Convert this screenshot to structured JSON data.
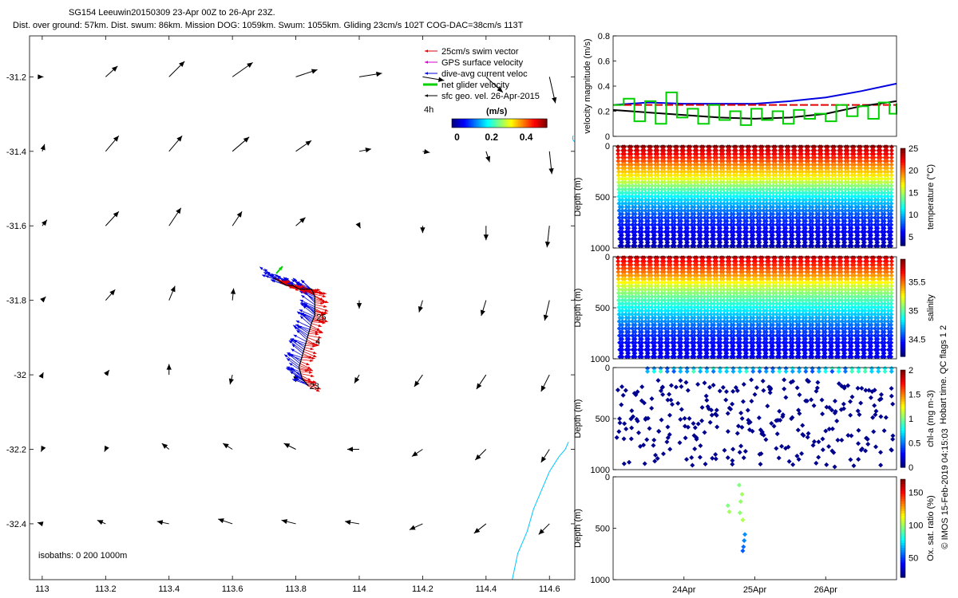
{
  "header": {
    "line1": "SG154 Leeuwin20150309 23-Apr 00Z to 26-Apr 23Z.",
    "line2": "Dist. over ground: 57km. Dist. swum: 86km. Mission DOG: 1059km. Swum: 1055km. Gliding 23cm/s 102T COG-DAC=38cm/s 113T"
  },
  "chart_data": [
    {
      "type": "map",
      "name": "glider-track-map",
      "xlim": [
        112.96,
        114.68
      ],
      "ylim": [
        -32.55,
        -31.09
      ],
      "xticks": [
        113,
        113.2,
        113.4,
        113.6,
        113.8,
        114,
        114.2,
        114.4,
        114.6
      ],
      "yticks": [
        -31.2,
        -31.4,
        -31.6,
        -31.8,
        -32,
        -32.2,
        -32.4
      ],
      "xtick_labels": [
        "113",
        "113.2",
        "113.4",
        "113.6",
        "113.8",
        "114",
        "114.2",
        "114.4",
        "114.6"
      ],
      "ytick_labels": [
        "-31.2",
        "-31.4",
        "-31.6",
        "-31.8",
        "-32",
        "-32.2",
        "-32.4"
      ],
      "legend": {
        "items": [
          {
            "label": "25cm/s swim vector",
            "color": "#e00000"
          },
          {
            "label": "GPS surface velocity",
            "color": "#d000d0"
          },
          {
            "label": "dive-avg current veloc",
            "color": "#0000e0"
          },
          {
            "label": "net glider velocity",
            "color": "#00d000"
          },
          {
            "label": "sfc geo. vel. 26-Apr-2015",
            "color": "#000000"
          }
        ],
        "placement": "top-right",
        "scale_label": "4h",
        "colorbar_title": "(m/s)",
        "colorbar_ticks": [
          "0",
          "0.2",
          "0.4"
        ],
        "colorbar_range": [
          -0.03,
          0.52
        ]
      },
      "isobaths_label": "isobaths: 0   200  1000m",
      "day_labels": [
        {
          "text": "23",
          "lon": 113.843,
          "lat": -32.03
        },
        {
          "text": "4",
          "lon": 113.862,
          "lat": -31.91
        },
        {
          "text": "25",
          "lon": 113.865,
          "lat": -31.845
        }
      ],
      "geo_grid": {
        "lons": [
          113.0,
          113.2,
          113.4,
          113.6,
          113.8,
          114.0,
          114.2,
          114.4,
          114.6
        ],
        "lats": [
          -31.2,
          -31.4,
          -31.6,
          -31.8,
          -32.0,
          -32.2,
          -32.4
        ],
        "u": [
          [
            0.01,
            0.1,
            0.13,
            0.17,
            0.18,
            0.19,
            0.18,
            0.14,
            0.05
          ],
          [
            0.02,
            0.11,
            0.11,
            0.14,
            0.13,
            0.1,
            0.06,
            0.03,
            0.02
          ],
          [
            0.04,
            0.11,
            0.1,
            0.08,
            0.08,
            0.01,
            0.0,
            0.0,
            -0.02
          ],
          [
            0.03,
            0.08,
            0.05,
            0.01,
            0.0,
            0.0,
            -0.03,
            -0.04,
            -0.04
          ],
          [
            0.01,
            0.03,
            0.0,
            -0.02,
            0.0,
            -0.04,
            -0.07,
            -0.08,
            -0.07
          ],
          [
            -0.01,
            -0.01,
            -0.06,
            -0.08,
            -0.1,
            -0.1,
            -0.09,
            -0.09,
            -0.07
          ],
          [
            -0.04,
            -0.07,
            -0.1,
            -0.12,
            -0.12,
            -0.12,
            -0.11,
            -0.1,
            -0.09
          ]
        ],
        "v": [
          [
            0.0,
            0.09,
            0.13,
            0.12,
            0.06,
            0.03,
            -0.03,
            -0.13,
            -0.22
          ],
          [
            0.06,
            0.13,
            0.13,
            0.12,
            0.09,
            0.02,
            -0.01,
            -0.09,
            -0.19
          ],
          [
            0.05,
            0.12,
            0.15,
            0.12,
            0.07,
            -0.02,
            -0.06,
            -0.12,
            -0.18
          ],
          [
            0.03,
            0.09,
            0.12,
            0.1,
            0.0,
            -0.07,
            -0.1,
            -0.13,
            -0.17
          ],
          [
            0.02,
            0.04,
            0.09,
            -0.08,
            -0.06,
            -0.07,
            -0.1,
            -0.12,
            -0.14
          ],
          [
            -0.02,
            -0.02,
            0.05,
            0.05,
            0.05,
            0.0,
            -0.06,
            -0.09,
            -0.11
          ],
          [
            0.01,
            0.03,
            0.02,
            0.04,
            0.03,
            0.02,
            -0.05,
            -0.08,
            -0.09
          ]
        ]
      },
      "track": {
        "lon": [
          113.84,
          113.82,
          113.81,
          113.82,
          113.83,
          113.84,
          113.85,
          113.86,
          113.86,
          113.86,
          113.85,
          113.83,
          113.81,
          113.79,
          113.77,
          113.75,
          113.73
        ],
        "lat": [
          -32.03,
          -32.01,
          -31.98,
          -31.95,
          -31.92,
          -31.89,
          -31.86,
          -31.84,
          -31.82,
          -31.79,
          -31.77,
          -31.77,
          -31.77,
          -31.76,
          -31.76,
          -31.75,
          -31.74
        ],
        "dac_speed": 0.25,
        "swim_speed": 0.25
      },
      "coastline": {
        "lon": [
          114.66,
          114.65,
          114.63,
          114.6,
          114.58,
          114.55,
          114.53,
          114.5,
          114.49,
          114.48
        ],
        "lat": [
          -32.18,
          -32.2,
          -32.22,
          -32.26,
          -32.3,
          -32.36,
          -32.42,
          -32.48,
          -32.52,
          -32.56
        ]
      }
    },
    {
      "type": "line",
      "name": "velocity-magnitude",
      "ylabel": "velocity magnitude (m/s)",
      "ylim": [
        0,
        0.8
      ],
      "yticks": [
        "0",
        "0.2",
        "0.4",
        "0.6",
        "0.8"
      ],
      "xlim": [
        23,
        27
      ],
      "series": [
        {
          "name": "dive-avg current veloc",
          "color": "#0000e0",
          "x": [
            23.0,
            23.5,
            24.0,
            24.5,
            25.0,
            25.5,
            26.0,
            26.5,
            27.0
          ],
          "y": [
            0.25,
            0.27,
            0.26,
            0.26,
            0.26,
            0.28,
            0.31,
            0.36,
            0.42
          ]
        },
        {
          "name": "25cm/s swim vector",
          "color": "#e00000",
          "x": [
            23.0,
            27.0
          ],
          "y": [
            0.25,
            0.25
          ]
        },
        {
          "name": "sfc geo. vel.",
          "color": "#000000",
          "x": [
            23.0,
            23.5,
            24.0,
            24.5,
            25.0,
            25.5,
            26.0,
            26.5,
            27.0
          ],
          "y": [
            0.21,
            0.19,
            0.17,
            0.15,
            0.14,
            0.15,
            0.18,
            0.24,
            0.28
          ]
        },
        {
          "name": "net glider velocity",
          "color": "#00d000",
          "x": [
            23.0,
            23.15,
            23.3,
            23.45,
            23.6,
            23.75,
            23.9,
            24.05,
            24.2,
            24.35,
            24.5,
            24.65,
            24.8,
            24.95,
            25.1,
            25.25,
            25.4,
            25.55,
            25.7,
            25.85,
            26.0,
            26.15,
            26.3,
            26.45,
            26.6,
            26.75,
            26.9,
            27.0
          ],
          "y": [
            0.25,
            0.3,
            0.12,
            0.28,
            0.1,
            0.35,
            0.15,
            0.22,
            0.1,
            0.25,
            0.13,
            0.2,
            0.09,
            0.22,
            0.13,
            0.2,
            0.1,
            0.21,
            0.14,
            0.18,
            0.12,
            0.25,
            0.16,
            0.24,
            0.14,
            0.27,
            0.18,
            0.26
          ]
        }
      ]
    },
    {
      "type": "scatter",
      "name": "temperature-section",
      "ylabel": "Depth (m)",
      "ylim": [
        1000,
        0
      ],
      "yticks": [
        "0",
        "500",
        "1000"
      ],
      "colorbar_label": "temperature (°C)",
      "colorbar_ticks": [
        "5",
        "10",
        "15",
        "20",
        "25"
      ],
      "crange": [
        3,
        25
      ],
      "dives": 42,
      "profile": {
        "depth": [
          0,
          100,
          200,
          300,
          400,
          500,
          600,
          700,
          800,
          900,
          1000
        ],
        "value": [
          24,
          22,
          19,
          17,
          14,
          11,
          9,
          7,
          6,
          5,
          4
        ]
      }
    },
    {
      "type": "scatter",
      "name": "salinity-section",
      "ylabel": "Depth (m)",
      "ylim": [
        1000,
        0
      ],
      "yticks": [
        "0",
        "500",
        "1000"
      ],
      "colorbar_label": "salinity",
      "colorbar_ticks": [
        "34.5",
        "35",
        "35.5"
      ],
      "crange": [
        34.2,
        35.9
      ],
      "dives": 42,
      "profile": {
        "depth": [
          0,
          100,
          200,
          300,
          400,
          500,
          600,
          700,
          800,
          900,
          1000
        ],
        "value": [
          35.75,
          35.6,
          35.4,
          35.15,
          35.0,
          34.85,
          34.7,
          34.55,
          34.45,
          34.4,
          34.38
        ]
      }
    },
    {
      "type": "scatter",
      "name": "chla-section",
      "ylabel": "Depth (m)",
      "ylim": [
        1000,
        0
      ],
      "yticks": [
        "0",
        "500",
        "1000"
      ],
      "colorbar_label": "chl-a (mg m-3)",
      "colorbar_ticks": [
        "0",
        "0.5",
        "1",
        "1.5",
        "2"
      ],
      "crange": [
        0,
        2
      ],
      "dives": 42,
      "surface_value": 0.6
    },
    {
      "type": "scatter",
      "name": "oxygen-section",
      "ylabel": "Depth (m)",
      "ylim": [
        1000,
        0
      ],
      "yticks": [
        "0",
        "500",
        "1000"
      ],
      "colorbar_label": "Ox. sat. ratio (%)",
      "colorbar_ticks": [
        "50",
        "100",
        "150"
      ],
      "crange": [
        20,
        170
      ],
      "xticks": [
        {
          "x": 24,
          "label": "24Apr"
        },
        {
          "x": 25,
          "label": "25Apr"
        },
        {
          "x": 26,
          "label": "26Apr"
        }
      ],
      "xlim": [
        23,
        27
      ],
      "points": [
        {
          "t": 24.78,
          "d": 80,
          "v": 95
        },
        {
          "t": 24.82,
          "d": 170,
          "v": 100
        },
        {
          "t": 24.8,
          "d": 240,
          "v": 98
        },
        {
          "t": 24.62,
          "d": 280,
          "v": 95
        },
        {
          "t": 24.64,
          "d": 340,
          "v": 100
        },
        {
          "t": 24.79,
          "d": 350,
          "v": 97
        },
        {
          "t": 24.83,
          "d": 420,
          "v": 102
        },
        {
          "t": 24.86,
          "d": 560,
          "v": 60
        },
        {
          "t": 24.85,
          "d": 620,
          "v": 58
        },
        {
          "t": 24.84,
          "d": 680,
          "v": 55
        },
        {
          "t": 24.83,
          "d": 720,
          "v": 52
        }
      ]
    }
  ],
  "side_labels": {
    "qc": "Hobart time. QC flags 1  2",
    "imos": "© IMOS 15-Feb-2019 04:15:03"
  }
}
